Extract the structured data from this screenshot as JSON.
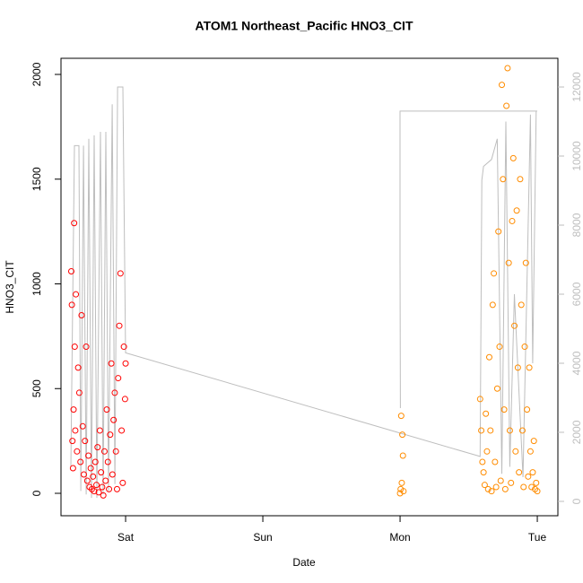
{
  "chart_data": {
    "type": "scatter",
    "title": "ATOM1 Northeast_Pacific HNO3_CIT",
    "x_label": "Date",
    "y_label": "HNO3_CIT",
    "xlim": [
      12.7,
      99.6
    ],
    "xticks": [
      {
        "value": 24,
        "label": "Sat"
      },
      {
        "value": 48,
        "label": "Sun"
      },
      {
        "value": 72,
        "label": "Mon"
      },
      {
        "value": 96,
        "label": "Tue"
      }
    ],
    "ylim": [
      -107,
      2077
    ],
    "yticks": [
      0,
      500,
      1000,
      1500,
      2000
    ],
    "y2lim": [
      -416,
      12831
    ],
    "y2ticks": [
      0,
      2000,
      4000,
      6000,
      8000,
      10000,
      12000
    ],
    "series": [
      {
        "color": "#ff0000",
        "x": [
          14.5,
          14.6,
          14.7,
          14.8,
          14.9,
          15.0,
          15.1,
          15.2,
          15.3,
          15.5,
          15.7,
          15.9,
          16.1,
          16.3,
          16.5,
          16.7,
          16.9,
          17.1,
          17.3,
          17.5,
          17.7,
          17.9,
          18.1,
          18.3,
          18.5,
          18.7,
          18.9,
          19.1,
          19.3,
          19.5,
          19.7,
          19.9,
          20.1,
          20.3,
          20.5,
          20.7,
          20.9,
          21.1,
          21.3,
          21.5,
          21.7,
          21.9,
          22.1,
          22.3,
          22.5,
          22.7,
          22.9,
          23.1,
          23.3,
          23.5,
          23.7,
          23.9,
          24.0
        ],
        "values": [
          1060,
          900,
          250,
          120,
          400,
          1290,
          700,
          300,
          950,
          200,
          600,
          480,
          150,
          850,
          320,
          90,
          250,
          700,
          60,
          180,
          30,
          120,
          20,
          80,
          10,
          150,
          40,
          220,
          5,
          300,
          100,
          30,
          -10,
          200,
          60,
          400,
          150,
          20,
          280,
          620,
          90,
          350,
          480,
          200,
          20,
          550,
          800,
          1050,
          300,
          50,
          700,
          450,
          620
        ]
      },
      {
        "color": "#ff8c00",
        "x": [
          72.0,
          72.1,
          72.2,
          72.3,
          72.4,
          72.5,
          72.6,
          86.0,
          86.2,
          86.4,
          86.6,
          86.8,
          87.0,
          87.2,
          87.4,
          87.6,
          87.8,
          88.0,
          88.2,
          88.4,
          88.6,
          88.8,
          89.0,
          89.2,
          89.4,
          89.6,
          89.8,
          90.0,
          90.2,
          90.4,
          90.6,
          90.8,
          91.0,
          91.2,
          91.4,
          91.6,
          91.8,
          92.0,
          92.2,
          92.4,
          92.6,
          92.8,
          93.0,
          93.2,
          93.4,
          93.6,
          93.8,
          94.0,
          94.2,
          94.4,
          94.6,
          94.8,
          95.0,
          95.2,
          95.4,
          95.6,
          95.8,
          96.0
        ],
        "values": [
          0,
          20,
          370,
          50,
          280,
          180,
          10,
          450,
          300,
          150,
          100,
          40,
          380,
          200,
          20,
          650,
          300,
          10,
          900,
          1050,
          150,
          30,
          500,
          1250,
          700,
          60,
          1950,
          1500,
          400,
          20,
          1850,
          2030,
          1100,
          300,
          50,
          1300,
          1600,
          800,
          200,
          1350,
          600,
          100,
          1500,
          900,
          300,
          30,
          700,
          1100,
          400,
          80,
          600,
          200,
          30,
          100,
          250,
          20,
          50,
          10
        ]
      },
      {
        "color": "#bebebe",
        "axis": "y2",
        "line": true,
        "x": [
          14.43,
          15.06,
          15.84,
          16.16,
          16.63,
          17.1,
          17.57,
          18.04,
          18.5,
          18.98,
          19.6,
          20.08,
          20.55,
          21.02,
          21.65,
          22.12,
          22.59,
          23.53,
          24.0,
          86.0,
          86.3,
          86.6,
          88.0,
          89.0,
          89.8,
          90.5,
          91.2,
          92.0,
          93.5,
          94.8,
          95.2,
          95.8,
          null,
          72.05,
          72.0,
          72.0,
          96.0
        ],
        "values": [
          1000,
          10300,
          10300,
          300,
          10300,
          200,
          10500,
          100,
          10600,
          100,
          10700,
          200,
          10700,
          300,
          11500,
          500,
          12000,
          12000,
          4300,
          1300,
          9300,
          9700,
          9900,
          10500,
          800,
          11000,
          1000,
          6000,
          700,
          11200,
          4000,
          11300,
          null,
          2700,
          7000,
          11300,
          11300
        ]
      }
    ]
  }
}
